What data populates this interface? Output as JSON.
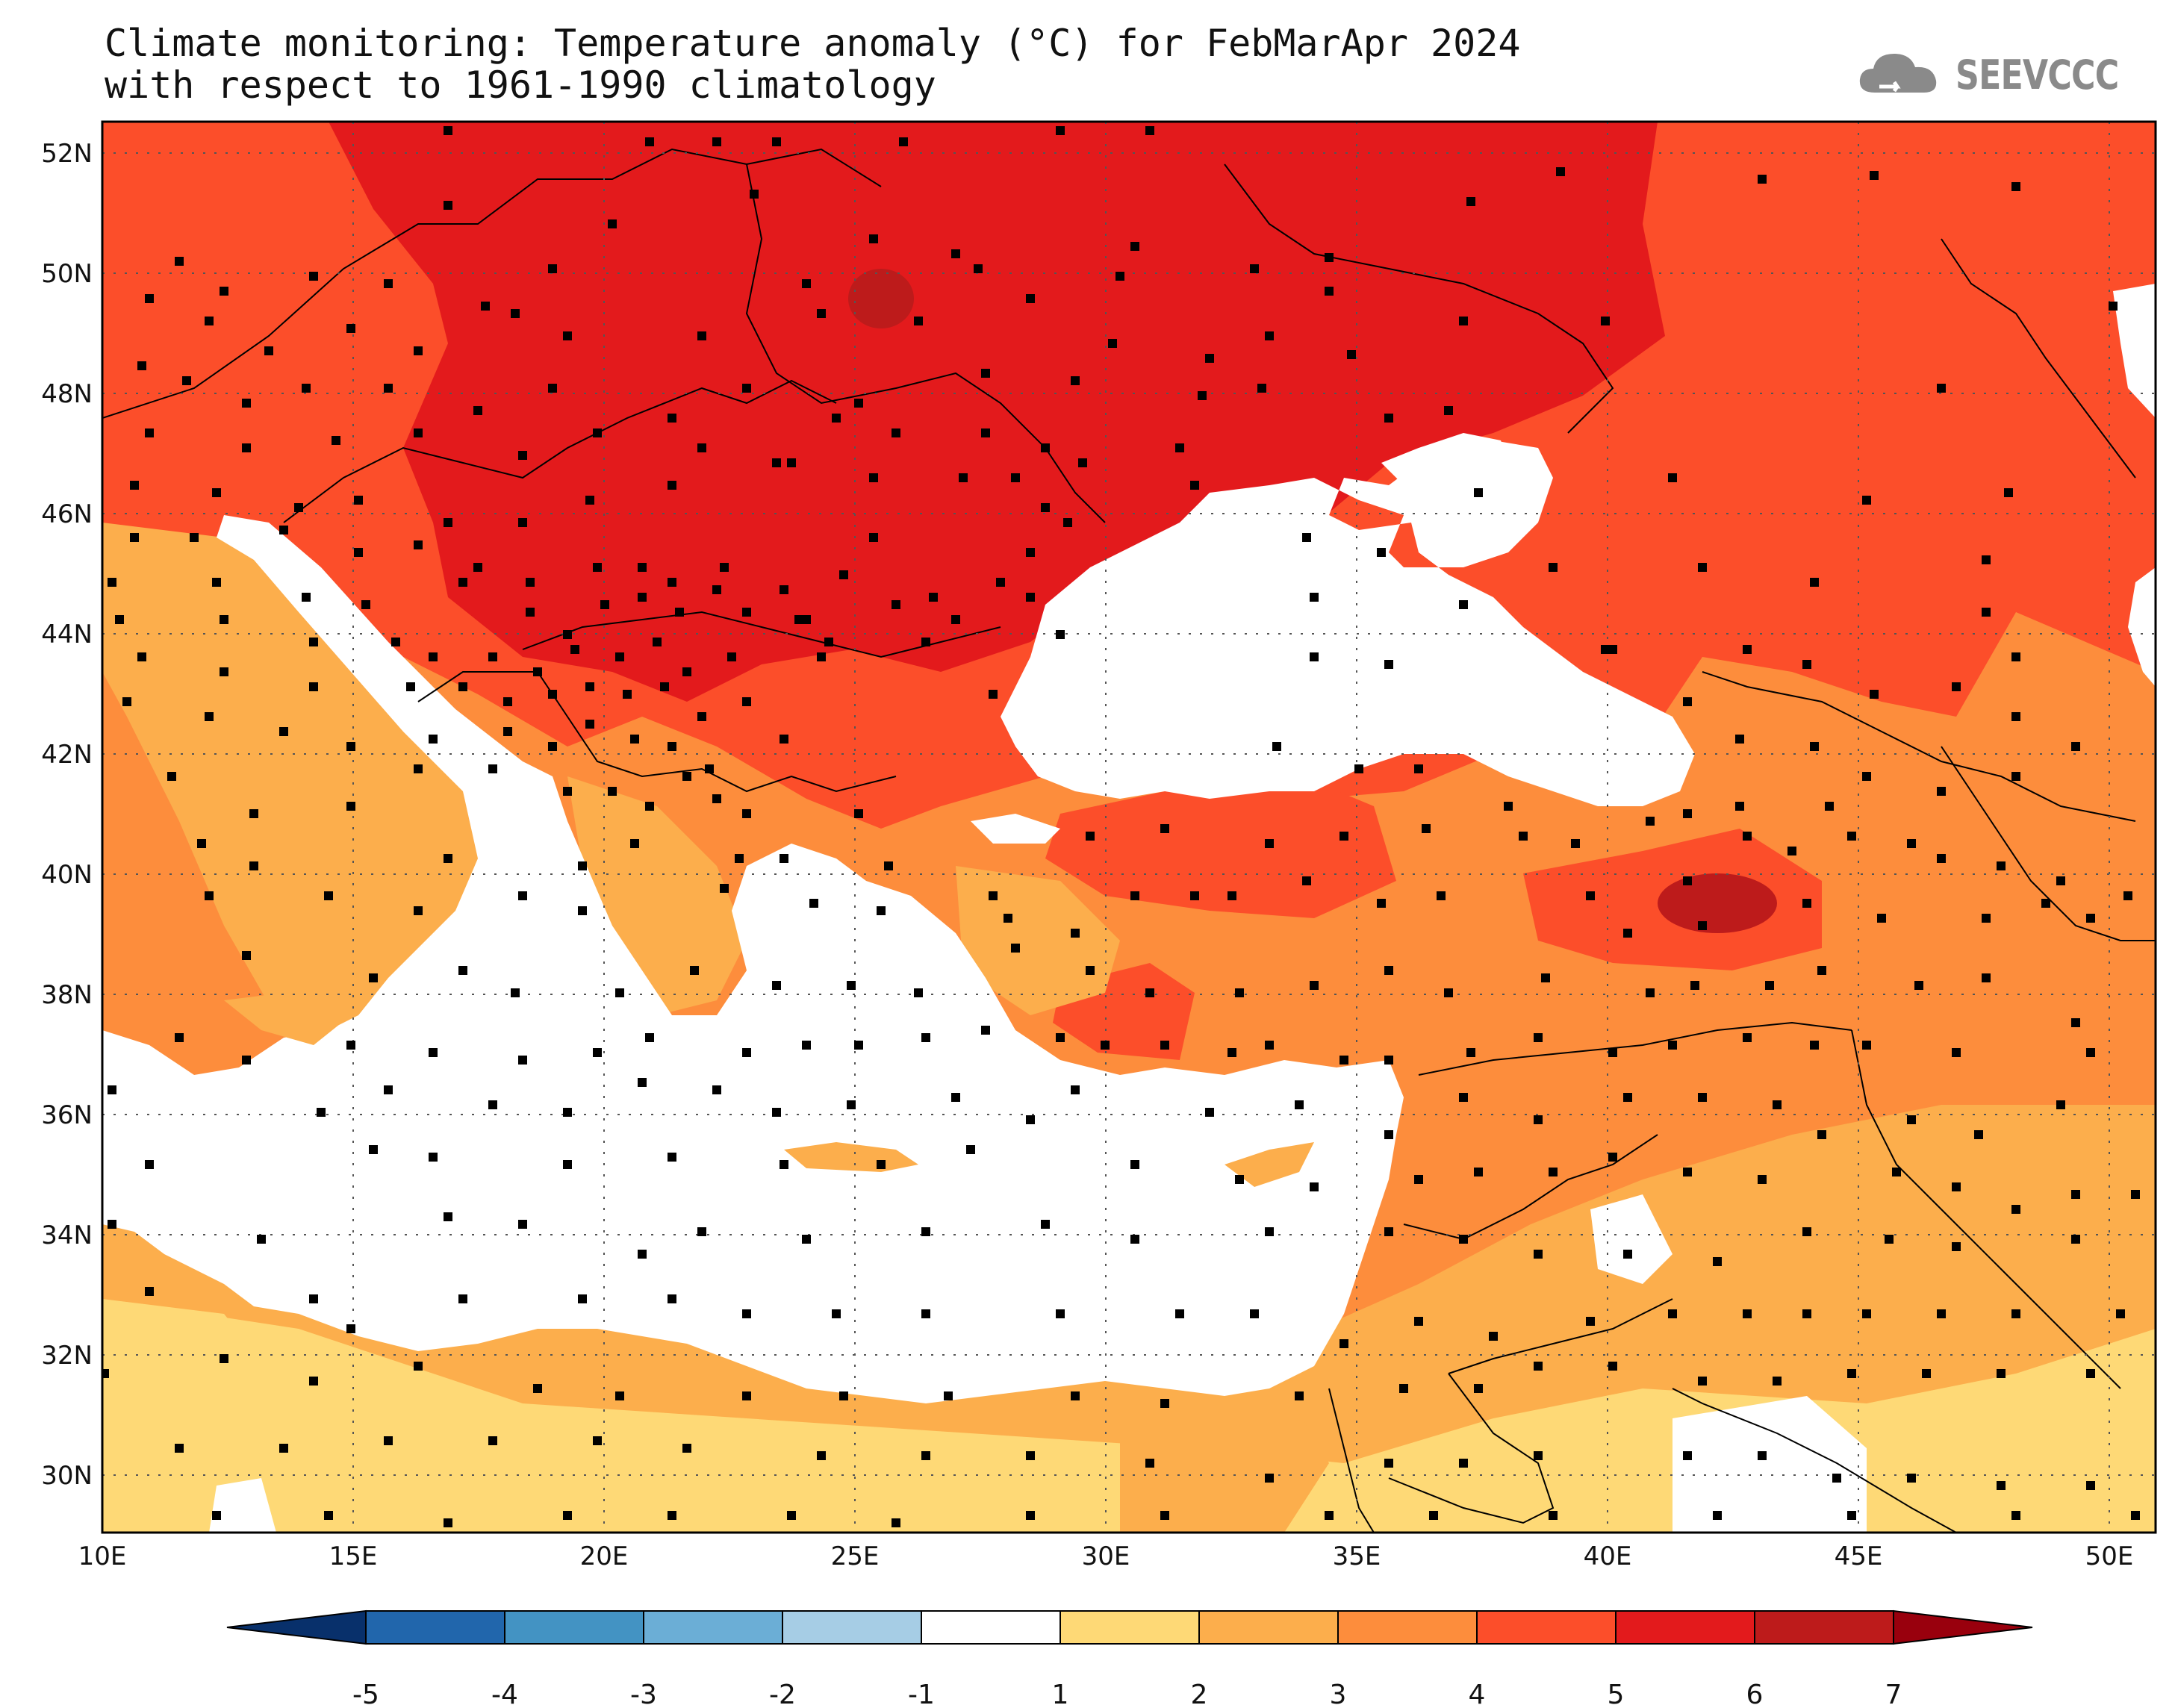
{
  "header": {
    "title_line1": "Climate monitoring: Temperature anomaly (°C) for FebMarApr 2024",
    "title_line2": "with respect to 1961-1990 climatology"
  },
  "logo": {
    "text": "SEEVCCC",
    "icon": "cloud-icon"
  },
  "map": {
    "lon_ticks": [
      "10E",
      "15E",
      "20E",
      "25E",
      "30E",
      "35E",
      "40E",
      "45E",
      "50E"
    ],
    "lat_ticks": [
      "52N",
      "50N",
      "48N",
      "46N",
      "44N",
      "42N",
      "40N",
      "38N",
      "36N",
      "34N",
      "32N",
      "30N"
    ],
    "gridlines": "dotted"
  },
  "colorbar": {
    "ticks": [
      "-5",
      "-4",
      "-3",
      "-2",
      "-1",
      "1",
      "2",
      "3",
      "4",
      "5",
      "6",
      "7"
    ],
    "colors": [
      "#08306b",
      "#2166ac",
      "#4393c3",
      "#6baed6",
      "#a6cde5",
      "#ffffff",
      "#fed976",
      "#fcae4c",
      "#fd8d3c",
      "#fc4e2a",
      "#e31a1c",
      "#bd1b1b",
      "#99000d"
    ]
  },
  "legend_colors": {
    "sea": "#ffffff",
    "anom_1_2": "#fed976",
    "anom_2_3": "#fcae4c",
    "anom_3_4": "#fd8d3c",
    "anom_4_5": "#fc4e2a",
    "anom_5_6": "#e31a1c",
    "anom_6_7": "#bd1b1b"
  }
}
